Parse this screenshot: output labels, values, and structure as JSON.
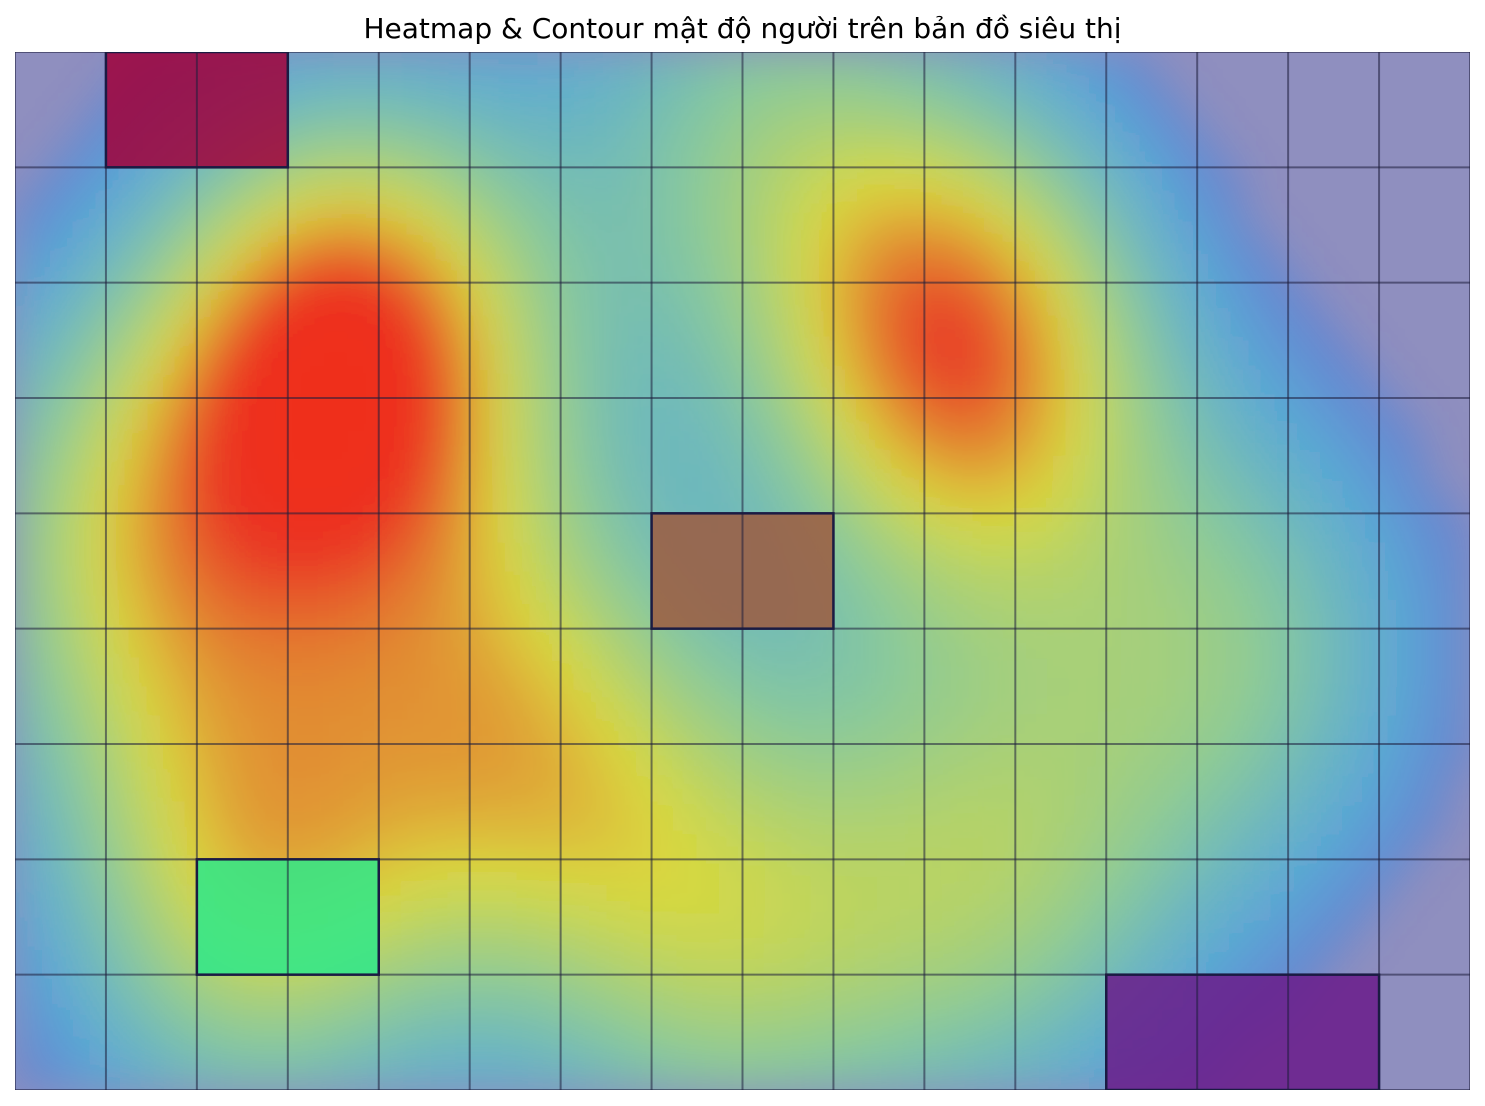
{
  "chart_data": {
    "type": "heatmap",
    "title": "Heatmap & Contour mật độ người trên bản đồ siêu thị",
    "xlabel": "",
    "ylabel": "",
    "grid": true,
    "axes_visible": false,
    "grid_cols": 16,
    "grid_rows": 9,
    "colormap": "jet",
    "colormap_stops": [
      "#0000ff",
      "#00d4ff",
      "#7fff7f",
      "#ffff00",
      "#ff2000"
    ],
    "background_color": "#8f8fbf",
    "density_hotspots": [
      {
        "x": 3.7,
        "y": 2.6,
        "density": 1.0
      },
      {
        "x": 10.4,
        "y": 2.6,
        "density": 0.9
      },
      {
        "x": 5.6,
        "y": 5.9,
        "density": 0.6
      },
      {
        "x": 2.6,
        "y": 7.3,
        "density": 0.65
      },
      {
        "x": 1.2,
        "y": 4.3,
        "density": 0.55
      },
      {
        "x": 7.8,
        "y": 7.8,
        "density": 0.5
      },
      {
        "x": 10.8,
        "y": 7.2,
        "density": 0.5
      },
      {
        "x": 13.5,
        "y": 5.2,
        "density": 0.45
      },
      {
        "x": 8.0,
        "y": 0.6,
        "density": 0.4
      }
    ],
    "zones": [
      {
        "col": 1,
        "row": 0,
        "w": 2,
        "h": 1,
        "color": "#a0003a"
      },
      {
        "col": 7,
        "row": 4,
        "w": 2,
        "h": 1,
        "color": "#9c5a40"
      },
      {
        "col": 2,
        "row": 7,
        "w": 2,
        "h": 1,
        "color": "#2ee88a"
      },
      {
        "col": 12,
        "row": 8,
        "w": 3,
        "h": 1,
        "color": "#6a1b8a"
      }
    ]
  }
}
